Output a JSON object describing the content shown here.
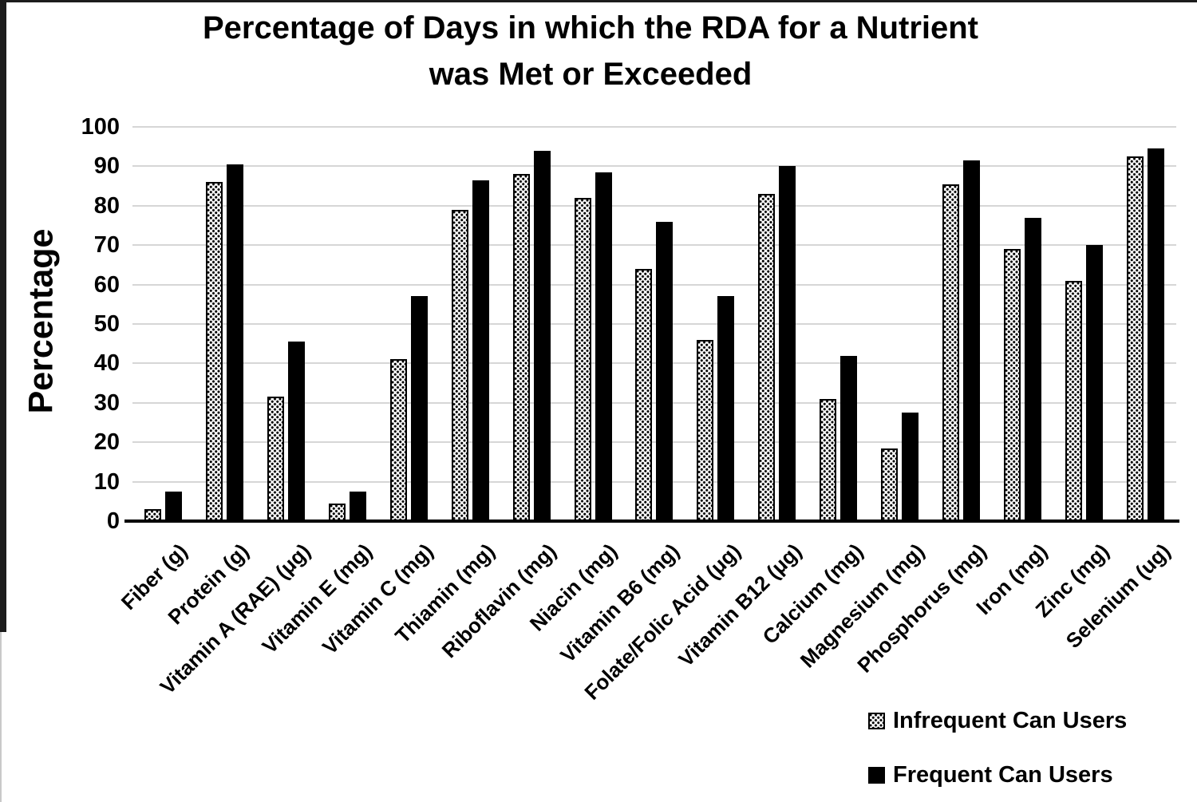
{
  "title": {
    "line1": "Percentage of Days in which the RDA for a Nutrient",
    "line2": "was Met or Exceeded"
  },
  "colors": {
    "bar_solid": "#000000",
    "bar_pattern_fg": "#000000",
    "bar_pattern_bg": "#ffffff",
    "gridline": "#d6d6d6",
    "axis": "#000000",
    "background": "#ffffff"
  },
  "chart_data": {
    "type": "bar",
    "title": "Percentage of Days in which the RDA for a Nutrient was Met or Exceeded",
    "xlabel": "",
    "ylabel": "Percentage",
    "ylim": [
      0,
      100
    ],
    "yticks": [
      0,
      10,
      20,
      30,
      40,
      50,
      60,
      70,
      80,
      90,
      100
    ],
    "grid": true,
    "legend_position": "bottom-right",
    "categories": [
      "Fiber (g)",
      "Protein (g)",
      "Vitamin A (RAE) (μg)",
      "Vitamin E (mg)",
      "Vitamin C (mg)",
      "Thiamin (mg)",
      "Riboflavin (mg)",
      "Niacin (mg)",
      "Vitamin B6 (mg)",
      "Folate/Folic Acid (μg)",
      "Vitamin B12 (μg)",
      "Calcium (mg)",
      "Magnesium (mg)",
      "Phosphorus (mg)",
      "Iron (mg)",
      "Zinc (mg)",
      "Selenium (ug)"
    ],
    "series": [
      {
        "name": "Infrequent Can Users",
        "pattern": "dotted",
        "values": [
          3,
          86,
          31.5,
          4.5,
          41,
          79,
          88,
          82,
          64,
          46,
          83,
          31,
          18.5,
          85.5,
          69,
          61,
          92.5
        ]
      },
      {
        "name": "Frequent Can Users",
        "pattern": "solid",
        "values": [
          7.5,
          90.5,
          45.5,
          7.5,
          57,
          86.5,
          94,
          88.5,
          76,
          57,
          90,
          42,
          27.5,
          91.5,
          77,
          70,
          94.5
        ]
      }
    ]
  }
}
